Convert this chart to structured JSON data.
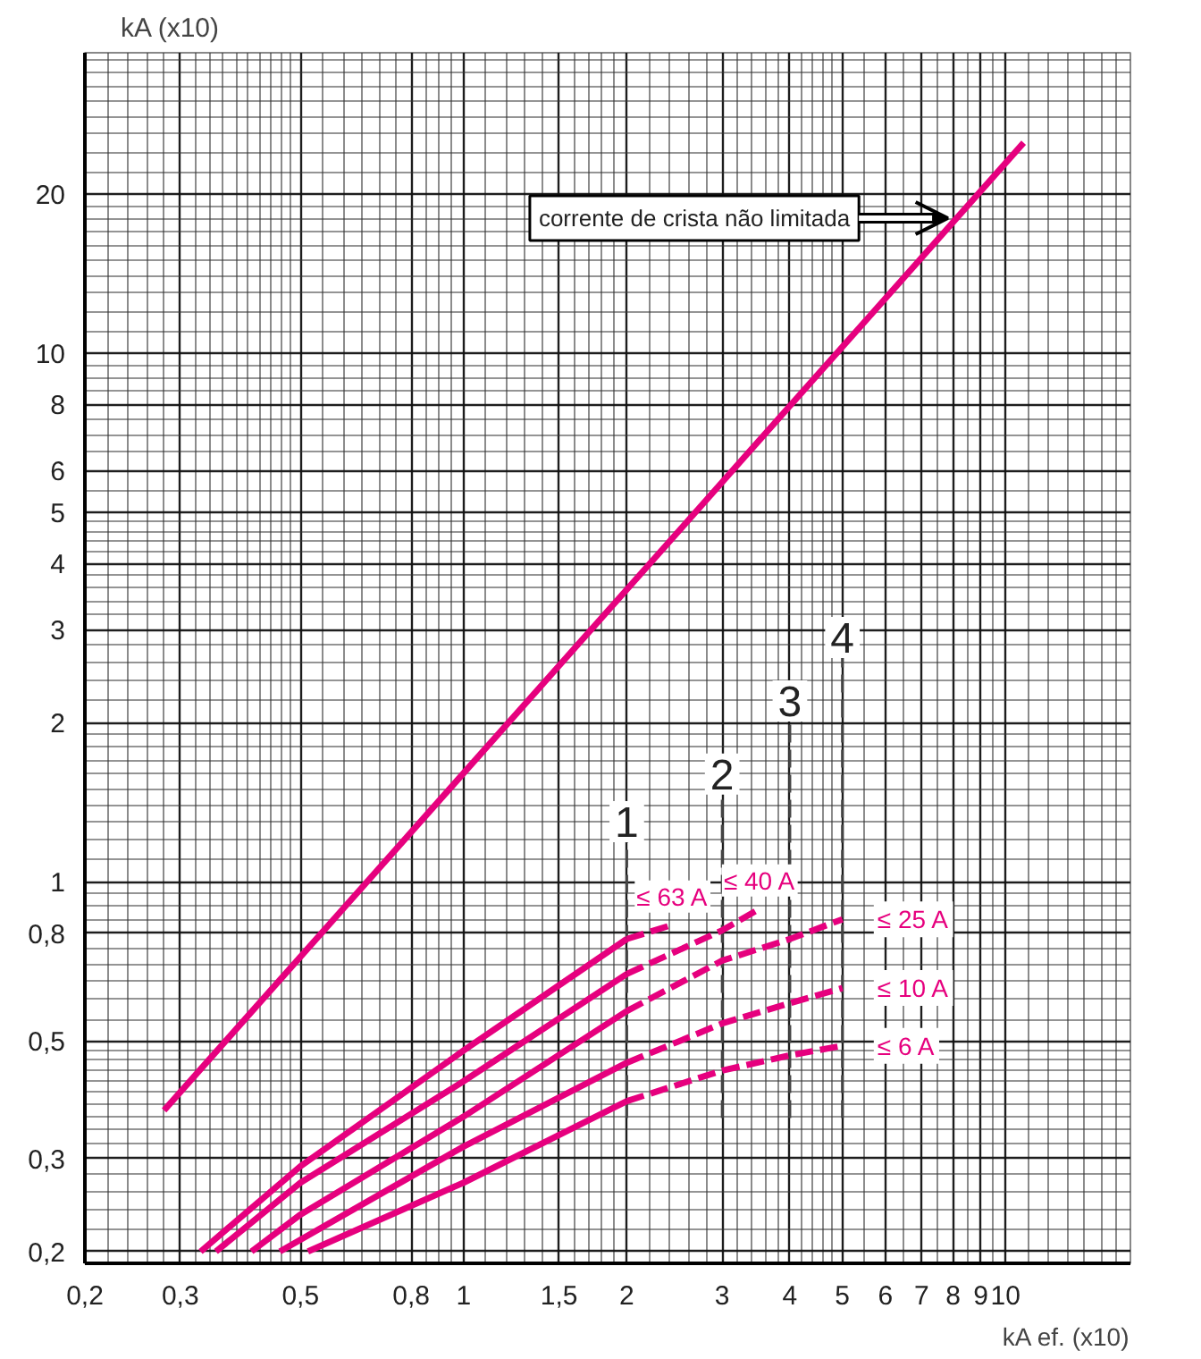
{
  "chart_data": {
    "type": "line",
    "xlabel": "kA ef. (x10)",
    "ylabel": "kA (x10)",
    "log": "xy",
    "grid": true,
    "line_style": "solid",
    "xlim": [
      0.2,
      17
    ],
    "ylim": [
      0.19,
      37
    ],
    "xticks": [
      {
        "value": 0.2,
        "label": "0,2"
      },
      {
        "value": 0.3,
        "label": "0,3"
      },
      {
        "value": 0.5,
        "label": "0,5"
      },
      {
        "value": 0.8,
        "label": "0,8"
      },
      1,
      {
        "value": 1.5,
        "label": "1,5"
      },
      2,
      3,
      4,
      5,
      6,
      7,
      8,
      9,
      10
    ],
    "yticks": [
      {
        "value": 0.2,
        "label": "0,2"
      },
      {
        "value": 0.3,
        "label": "0,3"
      },
      {
        "value": 0.5,
        "label": "0,5"
      },
      {
        "value": 0.8,
        "label": "0,8"
      },
      1,
      2,
      3,
      4,
      5,
      6,
      8,
      10,
      20
    ],
    "series": [
      {
        "color": "#e6007e",
        "x": [
          0.28,
          10.8
        ],
        "values": [
          0.37,
          25
        ]
      },
      {
        "color": "#e6007e",
        "x": [
          0.327,
          0.5,
          1,
          2
        ],
        "values": [
          0.2,
          0.29,
          0.48,
          0.78
        ]
      },
      {
        "color": "#e6007e",
        "x": [
          0.349,
          0.5,
          1,
          2
        ],
        "values": [
          0.2,
          0.27,
          0.42,
          0.67
        ]
      },
      {
        "color": "#e6007e",
        "x": [
          0.406,
          0.5,
          1,
          2
        ],
        "values": [
          0.2,
          0.235,
          0.36,
          0.57
        ]
      },
      {
        "color": "#e6007e",
        "x": [
          0.458,
          1,
          2
        ],
        "values": [
          0.2,
          0.316,
          0.455
        ]
      },
      {
        "color": "#e6007e",
        "x": [
          0.516,
          1,
          2
        ],
        "values": [
          0.2,
          0.27,
          0.385
        ]
      },
      {
        "name": "≤ 63 A",
        "color": "#e6007e",
        "line_style": "dashed",
        "x": [
          2,
          2.43
        ],
        "values": [
          0.78,
          0.83
        ]
      },
      {
        "name": "≤ 40 A",
        "color": "#e6007e",
        "line_style": "dashed",
        "x": [
          2,
          3,
          3.52
        ],
        "values": [
          0.67,
          0.81,
          0.89
        ]
      },
      {
        "name": "≤ 25 A",
        "color": "#e6007e",
        "line_style": "dashed",
        "x": [
          2,
          3,
          4,
          5
        ],
        "values": [
          0.57,
          0.71,
          0.78,
          0.85
        ]
      },
      {
        "name": "≤ 10 A",
        "color": "#e6007e",
        "line_style": "dashed",
        "x": [
          2,
          3,
          4,
          5
        ],
        "values": [
          0.455,
          0.54,
          0.59,
          0.63
        ]
      },
      {
        "name": "≤ 6 A",
        "color": "#e6007e",
        "line_style": "dashed",
        "x": [
          2,
          3,
          4,
          5
        ],
        "values": [
          0.385,
          0.44,
          0.47,
          0.49
        ]
      }
    ],
    "ref_lines": [
      {
        "axis": "x",
        "value": 2,
        "line_style": "dashed"
      },
      {
        "axis": "x",
        "value": 3,
        "line_style": "dashed"
      },
      {
        "axis": "x",
        "value": 4,
        "line_style": "dashed"
      },
      {
        "axis": "x",
        "value": 5,
        "line_style": "dashed"
      }
    ],
    "annotations": [
      {
        "text": "corrente de crista não limitada",
        "x": 8,
        "y": 18
      },
      {
        "text": "1",
        "x": 2,
        "y": 1.3
      },
      {
        "text": "2",
        "x": 3,
        "y": 1.6
      },
      {
        "text": "3",
        "x": 4,
        "y": 2.2
      },
      {
        "text": "4",
        "x": 5,
        "y": 2.9
      }
    ]
  }
}
